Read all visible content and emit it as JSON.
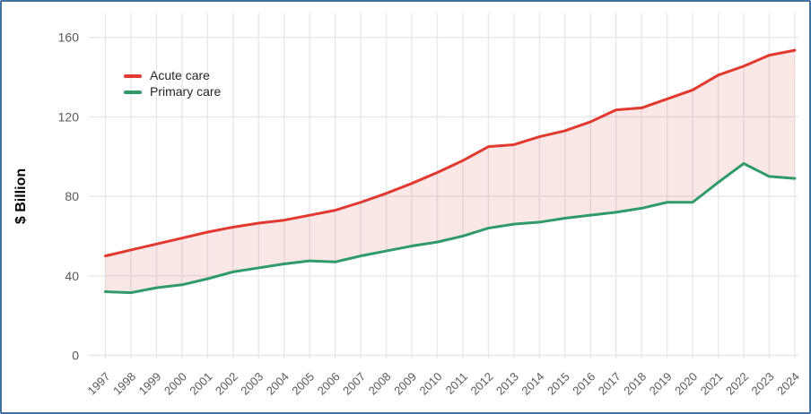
{
  "frame": {
    "border_color": "#41719c",
    "background": "#ffffff"
  },
  "chart_data": {
    "type": "area",
    "title": "",
    "xlabel": "",
    "ylabel": "$ Billion",
    "ylim": [
      0,
      160
    ],
    "yticks": [
      0,
      40,
      80,
      120,
      160
    ],
    "grid": "major-only-light-gray",
    "legend_position": "inside-top-left",
    "x": [
      "1997",
      "1998",
      "1999",
      "2000",
      "2001",
      "2002",
      "2003",
      "2004",
      "2005",
      "2006",
      "2007",
      "2008",
      "2009",
      "2010",
      "2011",
      "2012",
      "2013",
      "2014",
      "2015",
      "2016",
      "2017",
      "2018",
      "2019",
      "2020",
      "2021",
      "2022",
      "2023",
      "2024"
    ],
    "series": [
      {
        "name": "Acute care",
        "color": "#e1392e",
        "values": [
          50,
          53,
          56,
          59,
          62,
          64.5,
          66.5,
          68,
          70.5,
          73,
          77,
          81.5,
          86.5,
          92,
          98,
          105,
          106,
          110,
          113,
          117.5,
          123.5,
          124.5,
          129,
          133.5,
          141,
          145.5,
          151,
          153.5
        ]
      },
      {
        "name": "Primary care",
        "color": "#2f9a6a",
        "values": [
          32,
          31.5,
          34,
          35.5,
          38.5,
          42,
          44,
          46,
          47.5,
          47,
          50,
          52.5,
          55,
          57,
          60,
          64,
          66,
          67,
          69,
          70.5,
          72,
          74,
          77,
          77,
          87,
          96.5,
          90,
          89
        ]
      }
    ],
    "band_fill": "rgba(224,57,46,0.12)",
    "grid_color": "#e8e8e8",
    "tick_color": "#595959",
    "axis_title_color": "#000000"
  }
}
